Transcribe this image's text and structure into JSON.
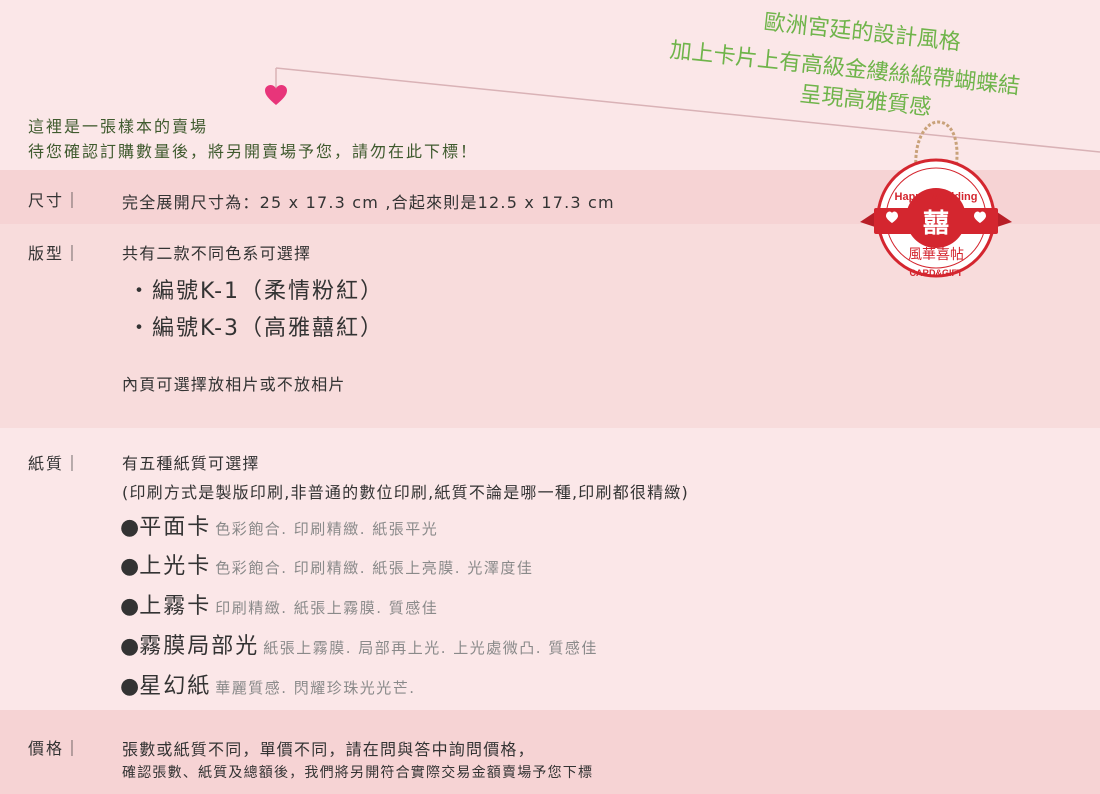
{
  "slogans": [
    "歐洲宮廷的設計風格",
    "加上卡片上有高級金縷絲緞帶蝴蝶結",
    "呈現高雅質感"
  ],
  "intro": [
    "這裡是一張樣本的賣場",
    "待您確認訂購數量後，將另開賣場予您，請勿在此下標！"
  ],
  "badge": {
    "top_text": "Happy Wedding",
    "emblem": "囍",
    "banner": "風華喜帖",
    "bottom_text": "CARD&GIFT"
  },
  "size": {
    "label": "尺寸｜",
    "text": "完全展開尺寸為：25 x 17.3 cm ,合起來則是12.5 x 17.3 cm"
  },
  "type": {
    "label": "版型｜",
    "intro": "共有二款不同色系可選擇",
    "models": [
      "・編號K-1（柔情粉紅）",
      "・編號K-3（高雅囍紅）"
    ],
    "note": "內頁可選擇放相片或不放相片"
  },
  "paper": {
    "label": "紙質｜",
    "intro": "有五種紙質可選擇",
    "note": "(印刷方式是製版印刷,非普通的數位印刷,紙質不論是哪一種,印刷都很精緻)",
    "bullet": "●",
    "options": [
      {
        "name": "平面卡",
        "desc": "色彩飽合. 印刷精緻. 紙張平光"
      },
      {
        "name": "上光卡",
        "desc": "色彩飽合. 印刷精緻. 紙張上亮膜. 光澤度佳"
      },
      {
        "name": "上霧卡",
        "desc": "印刷精緻. 紙張上霧膜. 質感佳"
      },
      {
        "name": "霧膜局部光",
        "desc": "紙張上霧膜. 局部再上光. 上光處微凸. 質感佳"
      },
      {
        "name": "星幻紙",
        "desc": "華麗質感. 閃耀珍珠光光芒."
      }
    ]
  },
  "price": {
    "label": "價格｜",
    "line1": "張數或紙質不同，單價不同，請在問與答中詢問價格，",
    "line2": "確認張數、紙質及總額後，我們將另開符合實際交易金額賣場予您下標"
  },
  "colors": {
    "slogan": "#6fb44a",
    "heart": "#e8357a",
    "badge_red": "#d4262f",
    "band_light": "#fbe7e8",
    "band_dark": "#f6d3d4"
  }
}
